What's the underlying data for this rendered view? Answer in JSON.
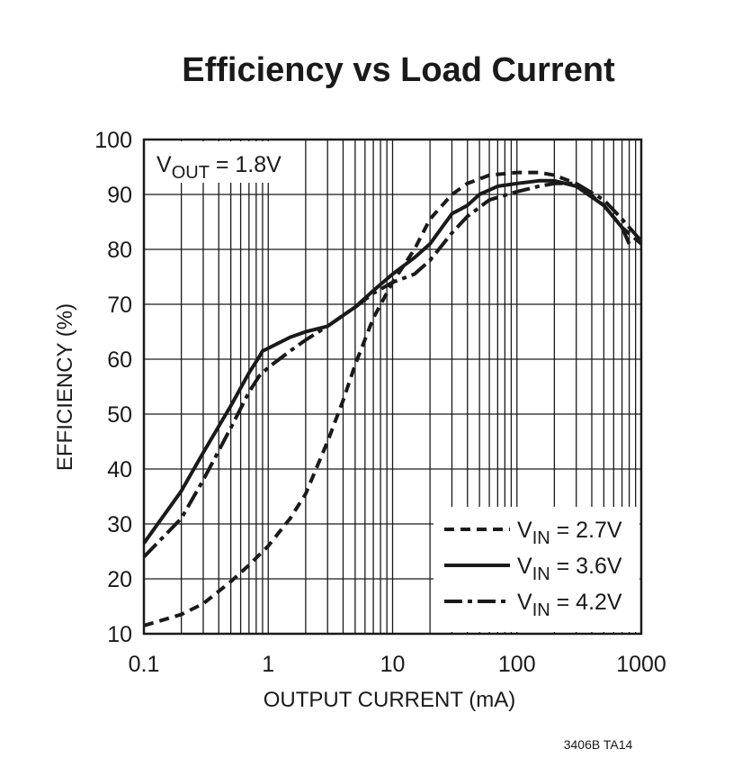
{
  "chart_data": {
    "type": "line",
    "title": "Efficiency vs Load Current",
    "xlabel": "OUTPUT CURRENT (mA)",
    "ylabel": "EFFICIENCY (%)",
    "xscale": "log",
    "xlim": [
      0.1,
      1000
    ],
    "ylim": [
      10,
      100
    ],
    "x_ticks": [
      "0.1",
      "1",
      "10",
      "100",
      "1000"
    ],
    "y_ticks": [
      "10",
      "20",
      "30",
      "40",
      "50",
      "60",
      "70",
      "80",
      "90",
      "100"
    ],
    "grid": true,
    "legend_position": "bottom-right",
    "annotation": {
      "main": "V",
      "sub": "OUT",
      "rest": " = 1.8V"
    },
    "series": [
      {
        "name": "VIN = 2.7V",
        "legend": {
          "main": "V",
          "sub": "IN",
          "rest": " = 2.7V"
        },
        "style": "dashed",
        "x": [
          0.1,
          0.2,
          0.3,
          0.5,
          0.7,
          1,
          1.5,
          2,
          3,
          4,
          5,
          7,
          10,
          15,
          20,
          30,
          40,
          60,
          100,
          150,
          200,
          300,
          500,
          700,
          1000
        ],
        "y": [
          11.5,
          13.5,
          15.5,
          19.5,
          22.5,
          26,
          31,
          35.5,
          45,
          52.5,
          59,
          67.5,
          74,
          80,
          85.5,
          90,
          92,
          93.5,
          94,
          94,
          93.5,
          92,
          88,
          84,
          81
        ]
      },
      {
        "name": "VIN = 3.6V",
        "legend": {
          "main": "V",
          "sub": "IN",
          "rest": " = 3.6V"
        },
        "style": "solid",
        "x": [
          0.1,
          0.2,
          0.3,
          0.5,
          0.7,
          0.85,
          0.9,
          1,
          1.5,
          2,
          3,
          5,
          7,
          10,
          15,
          20,
          30,
          40,
          50,
          70,
          100,
          150,
          200,
          300,
          500,
          700,
          800
        ],
        "y": [
          26.5,
          36,
          43,
          51.5,
          57.5,
          60.5,
          61.5,
          62,
          64,
          65,
          66,
          69.5,
          72.5,
          75.5,
          78.5,
          81,
          86.5,
          88,
          90,
          91.5,
          92,
          92.5,
          92.5,
          91.5,
          88,
          84,
          81
        ]
      },
      {
        "name": "VIN = 4.2V",
        "legend": {
          "main": "V",
          "sub": "IN",
          "rest": " = 4.2V"
        },
        "style": "dashdot",
        "x": [
          0.1,
          0.2,
          0.3,
          0.5,
          0.7,
          0.85,
          1,
          1.5,
          2,
          3,
          5,
          7,
          10,
          15,
          20,
          30,
          40,
          60,
          100,
          150,
          200,
          300,
          500,
          700,
          1000
        ],
        "y": [
          24,
          31,
          38,
          47.5,
          54,
          57,
          58.5,
          61.5,
          63.5,
          66,
          69.5,
          72,
          74,
          75.5,
          78,
          83,
          86,
          89,
          90.5,
          91.5,
          92,
          92,
          89,
          85.5,
          81.5
        ]
      }
    ],
    "footnote": "3406B TA14"
  }
}
